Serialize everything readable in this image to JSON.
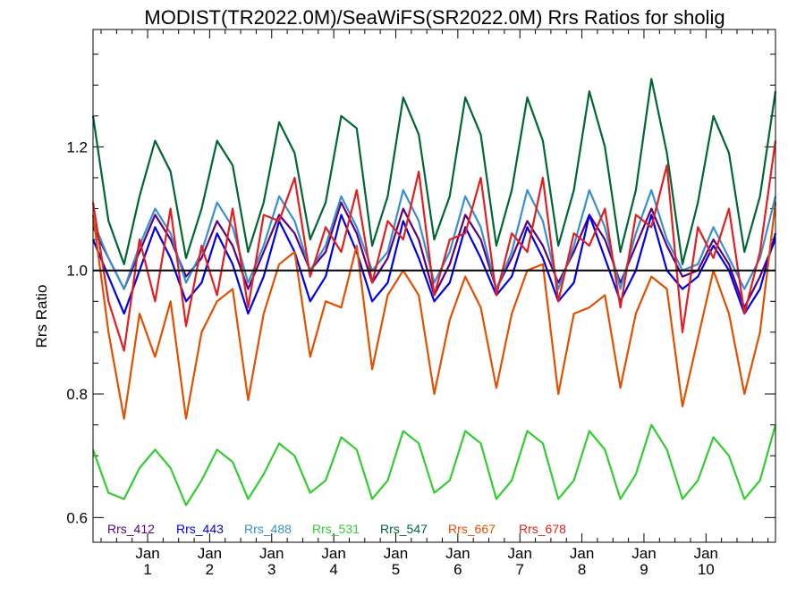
{
  "chart_data": {
    "type": "line",
    "title": "MODIST(TR2022.0M)/SeaWiFS(SR2022.0M)  Rrs Ratios for sholig",
    "xlabel": "",
    "ylabel": "Rrs Ratio",
    "ylim": [
      0.56,
      1.39
    ],
    "xlim": [
      0.0,
      11.0
    ],
    "yticks": [
      0.6,
      0.8,
      1.0,
      1.2
    ],
    "ytick_labels": [
      "0.6",
      "0.8",
      "1.0",
      "1.2"
    ],
    "xticks": [
      {
        "value": 0.88,
        "month": "Jan",
        "year": "1"
      },
      {
        "value": 1.88,
        "month": "Jan",
        "year": "2"
      },
      {
        "value": 2.88,
        "month": "Jan",
        "year": "3"
      },
      {
        "value": 3.88,
        "month": "Jan",
        "year": "4"
      },
      {
        "value": 4.88,
        "month": "Jan",
        "year": "5"
      },
      {
        "value": 5.88,
        "month": "Jan",
        "year": "6"
      },
      {
        "value": 6.88,
        "month": "Jan",
        "year": "7"
      },
      {
        "value": 7.88,
        "month": "Jan",
        "year": "8"
      },
      {
        "value": 8.88,
        "month": "Jan",
        "year": "9"
      },
      {
        "value": 9.88,
        "month": "Jan",
        "year": "10"
      }
    ],
    "reference_line": 1.0,
    "legend_position": "bottom-left",
    "x": [
      0.0,
      0.25,
      0.5,
      0.75,
      1.0,
      1.25,
      1.5,
      1.75,
      2.0,
      2.25,
      2.5,
      2.75,
      3.0,
      3.25,
      3.5,
      3.75,
      4.0,
      4.25,
      4.5,
      4.75,
      5.0,
      5.25,
      5.5,
      5.75,
      6.0,
      6.25,
      6.5,
      6.75,
      7.0,
      7.25,
      7.5,
      7.75,
      8.0,
      8.25,
      8.5,
      8.75,
      9.0,
      9.25,
      9.5,
      9.75,
      10.0,
      10.25,
      10.5,
      10.75,
      11.0
    ],
    "series": [
      {
        "name": "Rrs_412",
        "color": "#5a0080",
        "values": [
          1.07,
          1.02,
          0.97,
          1.03,
          1.09,
          1.05,
          0.99,
          1.02,
          1.08,
          1.04,
          0.97,
          1.03,
          1.09,
          1.06,
          1.0,
          1.03,
          1.11,
          1.06,
          0.98,
          1.02,
          1.1,
          1.05,
          0.96,
          1.01,
          1.09,
          1.05,
          0.97,
          1.02,
          1.08,
          1.04,
          0.98,
          1.03,
          1.09,
          1.05,
          0.98,
          1.04,
          1.1,
          1.04,
          0.99,
          1.0,
          1.05,
          1.01,
          0.94,
          0.99,
          1.05
        ]
      },
      {
        "name": "Rrs_443",
        "color": "#0000e6",
        "values": [
          1.05,
          0.99,
          0.93,
          1.0,
          1.07,
          1.02,
          0.95,
          0.98,
          1.06,
          1.01,
          0.93,
          0.99,
          1.08,
          1.03,
          0.95,
          0.99,
          1.09,
          1.03,
          0.95,
          0.98,
          1.08,
          1.02,
          0.95,
          0.98,
          1.07,
          1.02,
          0.96,
          0.99,
          1.07,
          1.02,
          0.95,
          0.98,
          1.09,
          1.02,
          0.95,
          1.0,
          1.09,
          1.0,
          0.97,
          0.99,
          1.04,
          1.0,
          0.93,
          0.97,
          1.06
        ]
      },
      {
        "name": "Rrs_488",
        "color": "#3a8fcf",
        "values": [
          1.08,
          1.02,
          0.97,
          1.04,
          1.1,
          1.06,
          0.98,
          1.03,
          1.11,
          1.07,
          0.98,
          1.04,
          1.12,
          1.08,
          1.0,
          1.04,
          1.12,
          1.07,
          1.0,
          1.03,
          1.13,
          1.08,
          0.98,
          1.03,
          1.12,
          1.07,
          0.97,
          1.03,
          1.13,
          1.08,
          0.97,
          1.04,
          1.13,
          1.07,
          0.97,
          1.06,
          1.13,
          1.05,
          1.0,
          1.01,
          1.07,
          1.02,
          0.97,
          1.02,
          1.12
        ]
      },
      {
        "name": "Rrs_531",
        "color": "#33cc33",
        "values": [
          0.71,
          0.64,
          0.63,
          0.68,
          0.71,
          0.68,
          0.62,
          0.66,
          0.71,
          0.69,
          0.63,
          0.67,
          0.72,
          0.7,
          0.64,
          0.66,
          0.73,
          0.71,
          0.63,
          0.66,
          0.74,
          0.72,
          0.64,
          0.66,
          0.74,
          0.72,
          0.63,
          0.66,
          0.74,
          0.72,
          0.63,
          0.66,
          0.74,
          0.71,
          0.63,
          0.67,
          0.75,
          0.71,
          0.63,
          0.66,
          0.73,
          0.7,
          0.63,
          0.66,
          0.75
        ]
      },
      {
        "name": "Rrs_547",
        "color": "#006633",
        "values": [
          1.25,
          1.08,
          1.01,
          1.12,
          1.21,
          1.16,
          1.02,
          1.1,
          1.21,
          1.17,
          1.03,
          1.11,
          1.24,
          1.19,
          1.05,
          1.11,
          1.25,
          1.23,
          1.04,
          1.12,
          1.28,
          1.22,
          1.05,
          1.12,
          1.28,
          1.22,
          1.04,
          1.13,
          1.28,
          1.21,
          1.04,
          1.13,
          1.29,
          1.2,
          1.03,
          1.13,
          1.31,
          1.19,
          1.01,
          1.11,
          1.25,
          1.19,
          1.03,
          1.12,
          1.29
        ]
      },
      {
        "name": "Rrs_667",
        "color": "#e05000",
        "values": [
          1.09,
          0.9,
          0.76,
          0.93,
          0.86,
          0.95,
          0.76,
          0.9,
          0.95,
          0.97,
          0.79,
          0.93,
          1.01,
          1.03,
          0.86,
          0.95,
          0.94,
          1.04,
          0.84,
          0.96,
          1.0,
          0.96,
          0.8,
          0.92,
          0.99,
          0.94,
          0.81,
          0.93,
          1.0,
          1.01,
          0.8,
          0.93,
          0.94,
          0.96,
          0.81,
          0.93,
          0.99,
          0.97,
          0.78,
          0.89,
          1.0,
          0.93,
          0.8,
          0.9,
          1.11
        ]
      },
      {
        "name": "Rrs_678",
        "color": "#e02020",
        "values": [
          1.11,
          0.95,
          0.87,
          1.05,
          0.95,
          1.1,
          0.91,
          1.04,
          0.96,
          1.1,
          0.94,
          1.09,
          1.08,
          1.15,
          0.99,
          1.07,
          1.03,
          1.13,
          0.98,
          1.08,
          1.05,
          1.16,
          0.96,
          1.05,
          1.06,
          1.15,
          0.96,
          1.06,
          1.03,
          1.15,
          0.95,
          1.06,
          1.04,
          1.1,
          0.94,
          1.09,
          1.07,
          1.17,
          0.9,
          1.07,
          1.02,
          1.1,
          0.93,
          1.03,
          1.21
        ]
      }
    ]
  }
}
